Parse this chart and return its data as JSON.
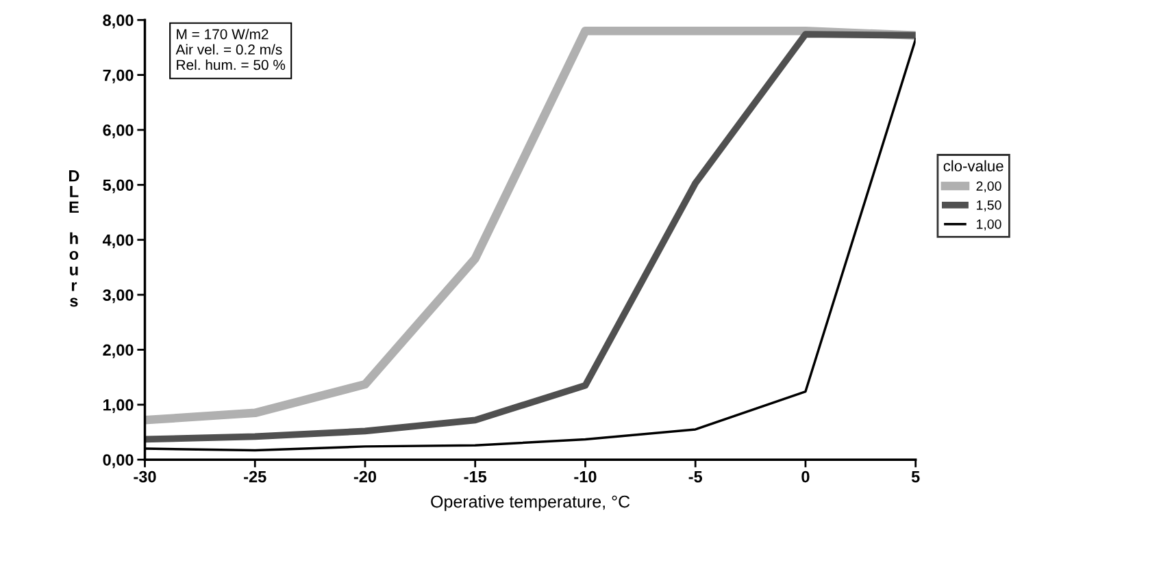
{
  "chart_data": {
    "type": "line",
    "xlabel": "Operative temperature, °C",
    "ylabel": "DLE hours",
    "legend_title": "clo-value",
    "legend": "right",
    "grid": false,
    "marker": "none",
    "line_style": "solid",
    "x": [
      -30,
      -25,
      -20,
      -15,
      -10,
      -5,
      0,
      5
    ],
    "xlim": [
      -30,
      5
    ],
    "xticks": [
      -30,
      -25,
      -20,
      -15,
      -10,
      -5,
      0,
      5
    ],
    "ylim": [
      0,
      8
    ],
    "yticks": [
      {
        "value": 0,
        "label": "0,00"
      },
      {
        "value": 1,
        "label": "1,00"
      },
      {
        "value": 2,
        "label": "2,00"
      },
      {
        "value": 3,
        "label": "3,00"
      },
      {
        "value": 4,
        "label": "4,00"
      },
      {
        "value": 5,
        "label": "5,00"
      },
      {
        "value": 6,
        "label": "6,00"
      },
      {
        "value": 7,
        "label": "7,00"
      },
      {
        "value": 8,
        "label": "8,00"
      }
    ],
    "annotations": [
      "M = 170 W/m2\nAir vel. = 0.2 m/s\nRel. hum. = 50 %"
    ],
    "series": [
      {
        "name": "2,00",
        "color": "#b0b0b0",
        "values": [
          0.72,
          0.85,
          1.37,
          3.66,
          7.8,
          7.8,
          7.8,
          7.72
        ]
      },
      {
        "name": "1,50",
        "color": "#505050",
        "values": [
          0.37,
          0.42,
          0.52,
          0.72,
          1.35,
          5.03,
          7.74,
          7.72
        ]
      },
      {
        "name": "1,00",
        "color": "#000000",
        "values": [
          0.2,
          0.17,
          0.24,
          0.26,
          0.37,
          0.55,
          1.24,
          7.65
        ]
      }
    ]
  }
}
